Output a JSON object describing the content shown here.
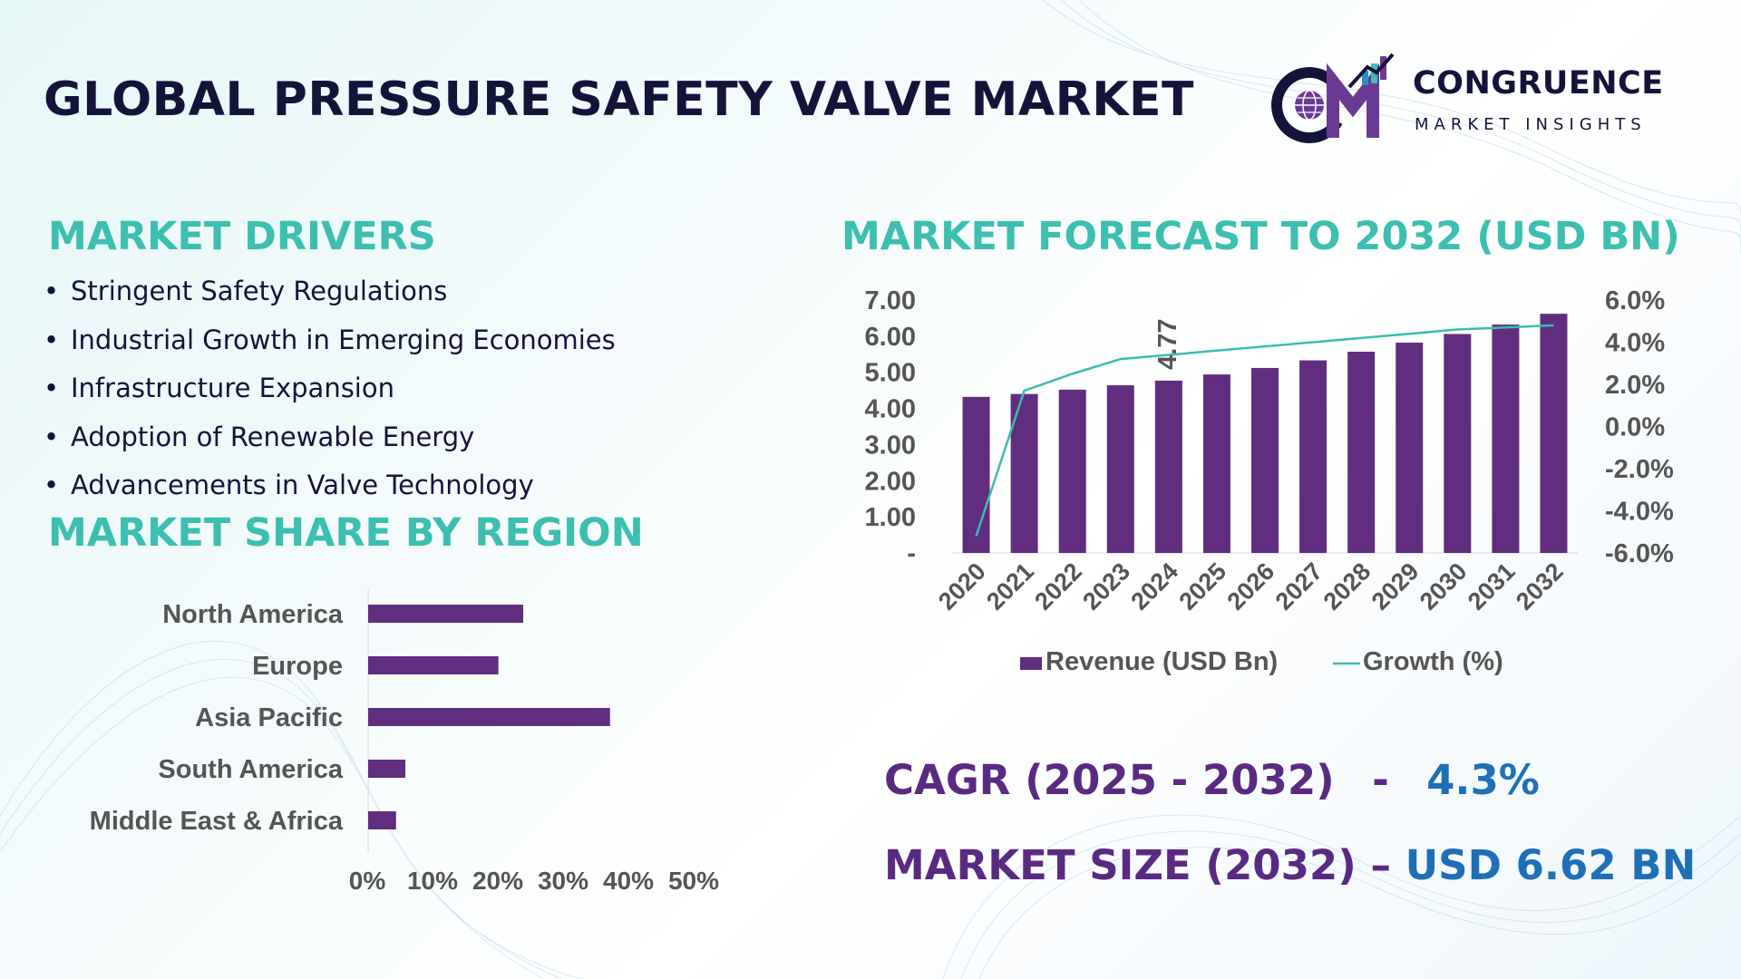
{
  "title": "GLOBAL PRESSURE SAFETY VALVE MARKET",
  "logo": {
    "mark": "CM",
    "name": "CONGRUENCE",
    "sub": "MARKET INSIGHTS",
    "icon": "globe-icon"
  },
  "drivers": {
    "heading": "MARKET DRIVERS",
    "items": [
      "Stringent Safety Regulations",
      "Industrial Growth in Emerging Economies",
      "Infrastructure Expansion",
      "Adoption of Renewable Energy",
      "Advancements in Valve Technology"
    ]
  },
  "region": {
    "heading": "MARKET SHARE BY REGION"
  },
  "forecast": {
    "heading": "MARKET FORECAST TO 2032 (USD BN)"
  },
  "kpis": {
    "cagr_label": "CAGR (2025 - 2032)",
    "cagr_sep": "-",
    "cagr_value": "4.3%",
    "size_label": "MARKET SIZE (2032)",
    "size_sep": "–",
    "size_value": "USD 6.62 BN"
  },
  "colors": {
    "bar": "#612d7e",
    "line": "#3bbdb0",
    "title": "#14143a",
    "teal": "#3cbfb0",
    "kpi_value": "#1f6fb8"
  },
  "chart_data": [
    {
      "type": "bar",
      "orientation": "horizontal",
      "categories": [
        "North America",
        "Europe",
        "Asia Pacific",
        "South America",
        "Middle East & Africa"
      ],
      "values": [
        25,
        21,
        39,
        6,
        4.5
      ],
      "xticks": [
        "0%",
        "10%",
        "20%",
        "30%",
        "40%",
        "50%"
      ],
      "xlim": [
        0,
        50
      ]
    },
    {
      "type": "bar",
      "categories": [
        "2020",
        "2021",
        "2022",
        "2023",
        "2024",
        "2025",
        "2026",
        "2027",
        "2028",
        "2029",
        "2030",
        "2031",
        "2032"
      ],
      "series": [
        {
          "name": "Revenue (USD Bn)",
          "type": "bar",
          "axis": "left",
          "values": [
            4.32,
            4.4,
            4.52,
            4.64,
            4.77,
            4.94,
            5.12,
            5.33,
            5.57,
            5.82,
            6.06,
            6.32,
            6.62
          ]
        },
        {
          "name": "Growth (%)",
          "type": "line",
          "axis": "right",
          "values": [
            -5.2,
            1.7,
            2.5,
            3.2,
            3.4,
            3.6,
            3.8,
            4.0,
            4.2,
            4.4,
            4.6,
            4.7,
            4.8
          ]
        }
      ],
      "data_labels": [
        {
          "category": "2024",
          "text": "4.77"
        }
      ],
      "y_left": {
        "ylim": [
          0,
          7
        ],
        "ticks": [
          "-",
          "1.00",
          "2.00",
          "3.00",
          "4.00",
          "5.00",
          "6.00",
          "7.00"
        ]
      },
      "y_right": {
        "ylim": [
          -6,
          6
        ],
        "ticks": [
          "-6.0%",
          "-4.0%",
          "-2.0%",
          "0.0%",
          "2.0%",
          "4.0%",
          "6.0%"
        ]
      },
      "legend": "bottom"
    }
  ]
}
